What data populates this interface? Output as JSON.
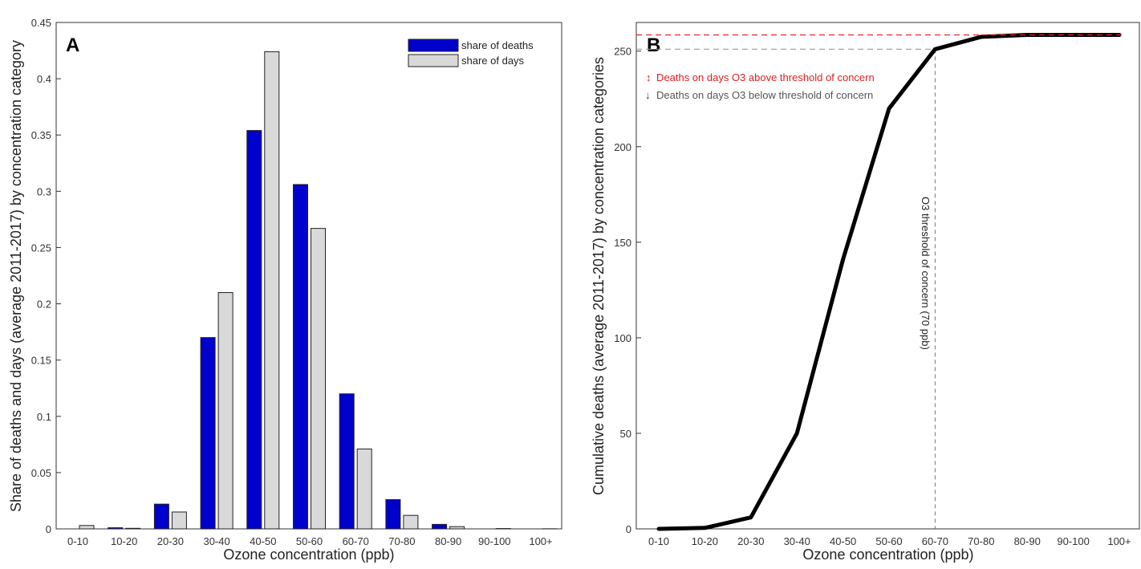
{
  "chart_data": [
    {
      "panel": "A",
      "type": "bar",
      "xlabel": "Ozone concentration (ppb)",
      "ylabel": "Share of deaths and days (average 2011-2017) by concentration category",
      "ylim": [
        0,
        0.45
      ],
      "yticks": [
        0,
        0.05,
        0.1,
        0.15,
        0.2,
        0.25,
        0.3,
        0.35,
        0.4,
        0.45
      ],
      "ytick_labels": [
        "0",
        "0.05",
        "0.1",
        "0.15",
        "0.2",
        "0.25",
        "0.3",
        "0.35",
        "0.4",
        "0.45"
      ],
      "categories": [
        "0-10",
        "10-20",
        "20-30",
        "30-40",
        "40-50",
        "50-60",
        "60-70",
        "70-80",
        "80-90",
        "90-100",
        "100+"
      ],
      "series": [
        {
          "name": "share of deaths",
          "color": "#0000cc",
          "values": [
            0.0,
            0.001,
            0.022,
            0.17,
            0.354,
            0.306,
            0.12,
            0.026,
            0.004,
            0.0,
            0.0
          ]
        },
        {
          "name": "share of days",
          "color": "#d9d9d9",
          "values": [
            0.003,
            0.0005,
            0.015,
            0.21,
            0.424,
            0.267,
            0.071,
            0.012,
            0.002,
            0.0003,
            0.0001
          ]
        }
      ],
      "legend_position": "top-right",
      "grid": false
    },
    {
      "panel": "B",
      "type": "line",
      "xlabel": "Ozone concentration (ppb)",
      "ylabel": "Cumulative deaths (average 2011-2017) by concentration categories",
      "ylim": [
        0,
        265
      ],
      "yticks": [
        0,
        50,
        100,
        150,
        200,
        250
      ],
      "categories": [
        "0-10",
        "10-20",
        "20-30",
        "30-40",
        "40-50",
        "50-60",
        "60-70",
        "70-80",
        "80-90",
        "90-100",
        "100+"
      ],
      "series": [
        {
          "color": "#000000",
          "values": [
            0,
            0.5,
            6,
            50,
            141,
            220,
            251,
            257.5,
            258.5,
            258.5,
            258.5
          ]
        }
      ],
      "reference_lines": {
        "upper_y": 258.5,
        "lower_y": 251,
        "threshold_category": "60-70"
      },
      "annotations": {
        "above": "Deaths on days O3 above threshold of concern",
        "below": "Deaths on days O3 below threshold of concern",
        "threshold": "O3 threshold of concern (70 ppb)"
      },
      "grid": false
    }
  ]
}
